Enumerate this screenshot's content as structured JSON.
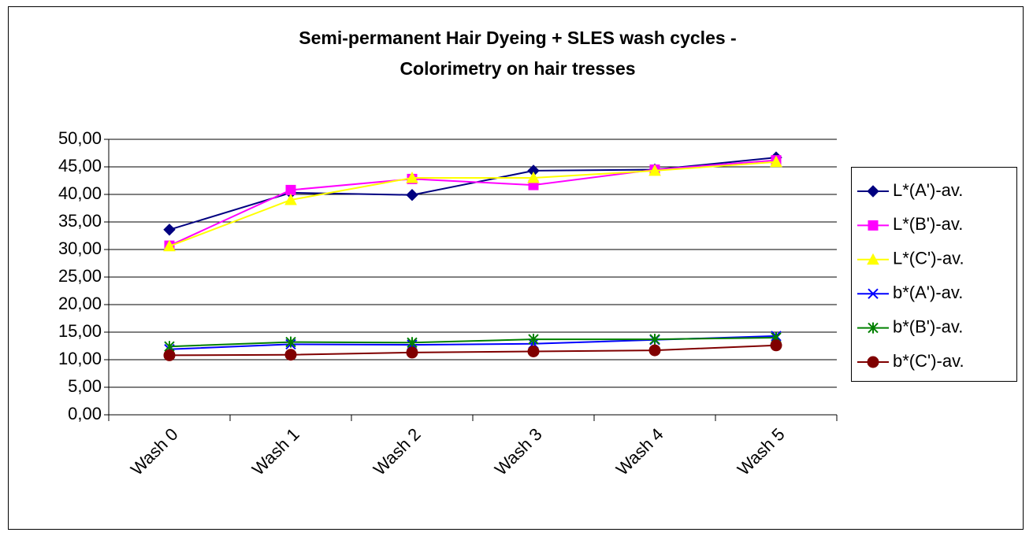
{
  "chart_data": {
    "type": "line",
    "title": [
      "Semi-permanent Hair Dyeing + SLES wash cycles -",
      "Colorimetry on hair tresses"
    ],
    "categories": [
      "Wash 0",
      "Wash 1",
      "Wash 2",
      "Wash 3",
      "Wash 4",
      "Wash 5"
    ],
    "series": [
      {
        "name": "L*(A')-av.",
        "color": "#000080",
        "marker": "diamond",
        "values": [
          33.6,
          40.3,
          39.9,
          44.3,
          44.5,
          46.7
        ]
      },
      {
        "name": "L*(B')-av.",
        "color": "#ff00ff",
        "marker": "square",
        "values": [
          30.7,
          40.8,
          42.8,
          41.7,
          44.5,
          46.2
        ]
      },
      {
        "name": "L*(C')-av.",
        "color": "#ffff00",
        "marker": "triangle",
        "values": [
          30.6,
          39.0,
          43.0,
          43.0,
          44.3,
          45.9
        ]
      },
      {
        "name": "b*(A')-av.",
        "color": "#0000ff",
        "marker": "x",
        "values": [
          11.9,
          12.8,
          12.7,
          12.9,
          13.6,
          14.3
        ]
      },
      {
        "name": "b*(B')-av.",
        "color": "#008000",
        "marker": "star",
        "values": [
          12.4,
          13.2,
          13.1,
          13.7,
          13.7,
          14.0
        ]
      },
      {
        "name": "b*(C')-av.",
        "color": "#800000",
        "marker": "circle",
        "values": [
          10.8,
          10.9,
          11.3,
          11.5,
          11.7,
          12.6
        ]
      }
    ],
    "ylim": [
      0,
      50
    ],
    "yticks": [
      {
        "value": 0,
        "label": "0,00"
      },
      {
        "value": 5,
        "label": "5,00"
      },
      {
        "value": 10,
        "label": "10,00"
      },
      {
        "value": 15,
        "label": "15,00"
      },
      {
        "value": 20,
        "label": "20,00"
      },
      {
        "value": 25,
        "label": "25,00"
      },
      {
        "value": 30,
        "label": "30,00"
      },
      {
        "value": 35,
        "label": "35,00"
      },
      {
        "value": 40,
        "label": "40,00"
      },
      {
        "value": 45,
        "label": "45,00"
      },
      {
        "value": 50,
        "label": "50,00"
      }
    ],
    "grid": true,
    "legend": "right"
  }
}
